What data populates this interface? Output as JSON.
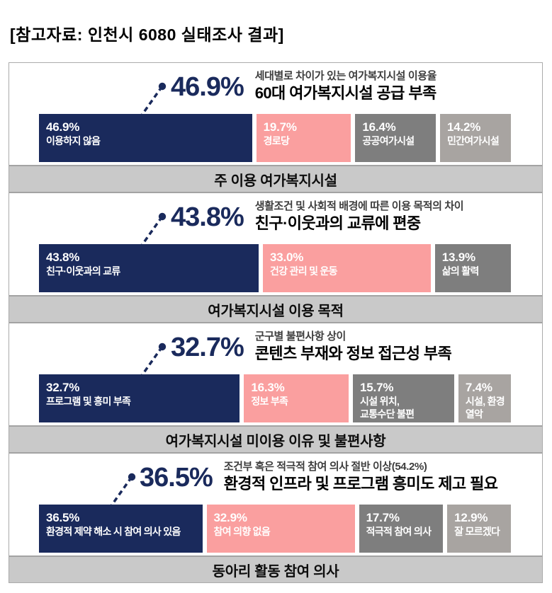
{
  "page": {
    "title": "[참고자료: 인천시 6080 실태조사 결과]"
  },
  "colors": {
    "navy": "#1a2a5c",
    "pink": "#fa9f9f",
    "gray": "#7e7e7e",
    "light_gray": "#a8a4a1",
    "caption_band": "#c9c9c9"
  },
  "chart_data": [
    {
      "type": "bar",
      "orientation": "horizontal",
      "unit": "%",
      "highlight_value": "46.9%",
      "subtitle": "세대별로 차이가 있는 여가복지시설 이용율",
      "title": "60대 여가복지시설 공급 부족",
      "footer_caption": "주 이용 여가복지시설",
      "categories": [
        "이용하지 않음",
        "경로당",
        "공공여가시설",
        "민간여가시설"
      ],
      "values": [
        46.9,
        19.7,
        16.4,
        14.2
      ],
      "value_labels": [
        "46.9%",
        "19.7%",
        "16.4%",
        "14.2%"
      ],
      "bar_colors": [
        "#1a2a5c",
        "#fa9f9f",
        "#7e7e7e",
        "#a8a4a1"
      ]
    },
    {
      "type": "bar",
      "orientation": "horizontal",
      "unit": "%",
      "highlight_value": "43.8%",
      "subtitle": "생활조건 및 사회적 배경에 따른 이용 목적의 차이",
      "title": "친구·이웃과의 교류에 편중",
      "footer_caption": "여가복지시설 이용 목적",
      "categories": [
        "친구·이웃과의 교류",
        "건강 관리 및 운동",
        "삶의 활력"
      ],
      "values": [
        43.8,
        33.0,
        13.9
      ],
      "value_labels": [
        "43.8%",
        "33.0%",
        "13.9%"
      ],
      "bar_colors": [
        "#1a2a5c",
        "#fa9f9f",
        "#7e7e7e"
      ]
    },
    {
      "type": "bar",
      "orientation": "horizontal",
      "unit": "%",
      "highlight_value": "32.7%",
      "subtitle": "군구별 불편사항 상이",
      "title": "콘텐츠 부재와 정보 접근성 부족",
      "footer_caption": "여가복지시설 미이용 이유 및 불편사항",
      "categories": [
        "프로그램 및 흥미 부족",
        "정보 부족",
        "시설 위치,\n교통수단 불편",
        "시설, 환경 열악"
      ],
      "values": [
        32.7,
        16.3,
        15.7,
        7.4
      ],
      "value_labels": [
        "32.7%",
        "16.3%",
        "15.7%",
        "7.4%"
      ],
      "bar_colors": [
        "#1a2a5c",
        "#fa9f9f",
        "#7e7e7e",
        "#a8a4a1"
      ]
    },
    {
      "type": "bar",
      "orientation": "horizontal",
      "unit": "%",
      "highlight_value": "36.5%",
      "subtitle": "조건부 혹은 적극적 참여 의사 절반 이상(54.2%)",
      "title": "환경적 인프라 및 프로그램 흥미도 제고 필요",
      "footer_caption": "동아리 활동 참여 의사",
      "categories": [
        "환경적 제약 해소 시 참여 의사 있음",
        "참여 의향 없음",
        "적극적 참여 의사",
        "잘 모르겠다"
      ],
      "values": [
        36.5,
        32.9,
        17.7,
        12.9
      ],
      "value_labels": [
        "36.5%",
        "32.9%",
        "17.7%",
        "12.9%"
      ],
      "bar_colors": [
        "#1a2a5c",
        "#fa9f9f",
        "#7e7e7e",
        "#a8a4a1"
      ]
    }
  ]
}
